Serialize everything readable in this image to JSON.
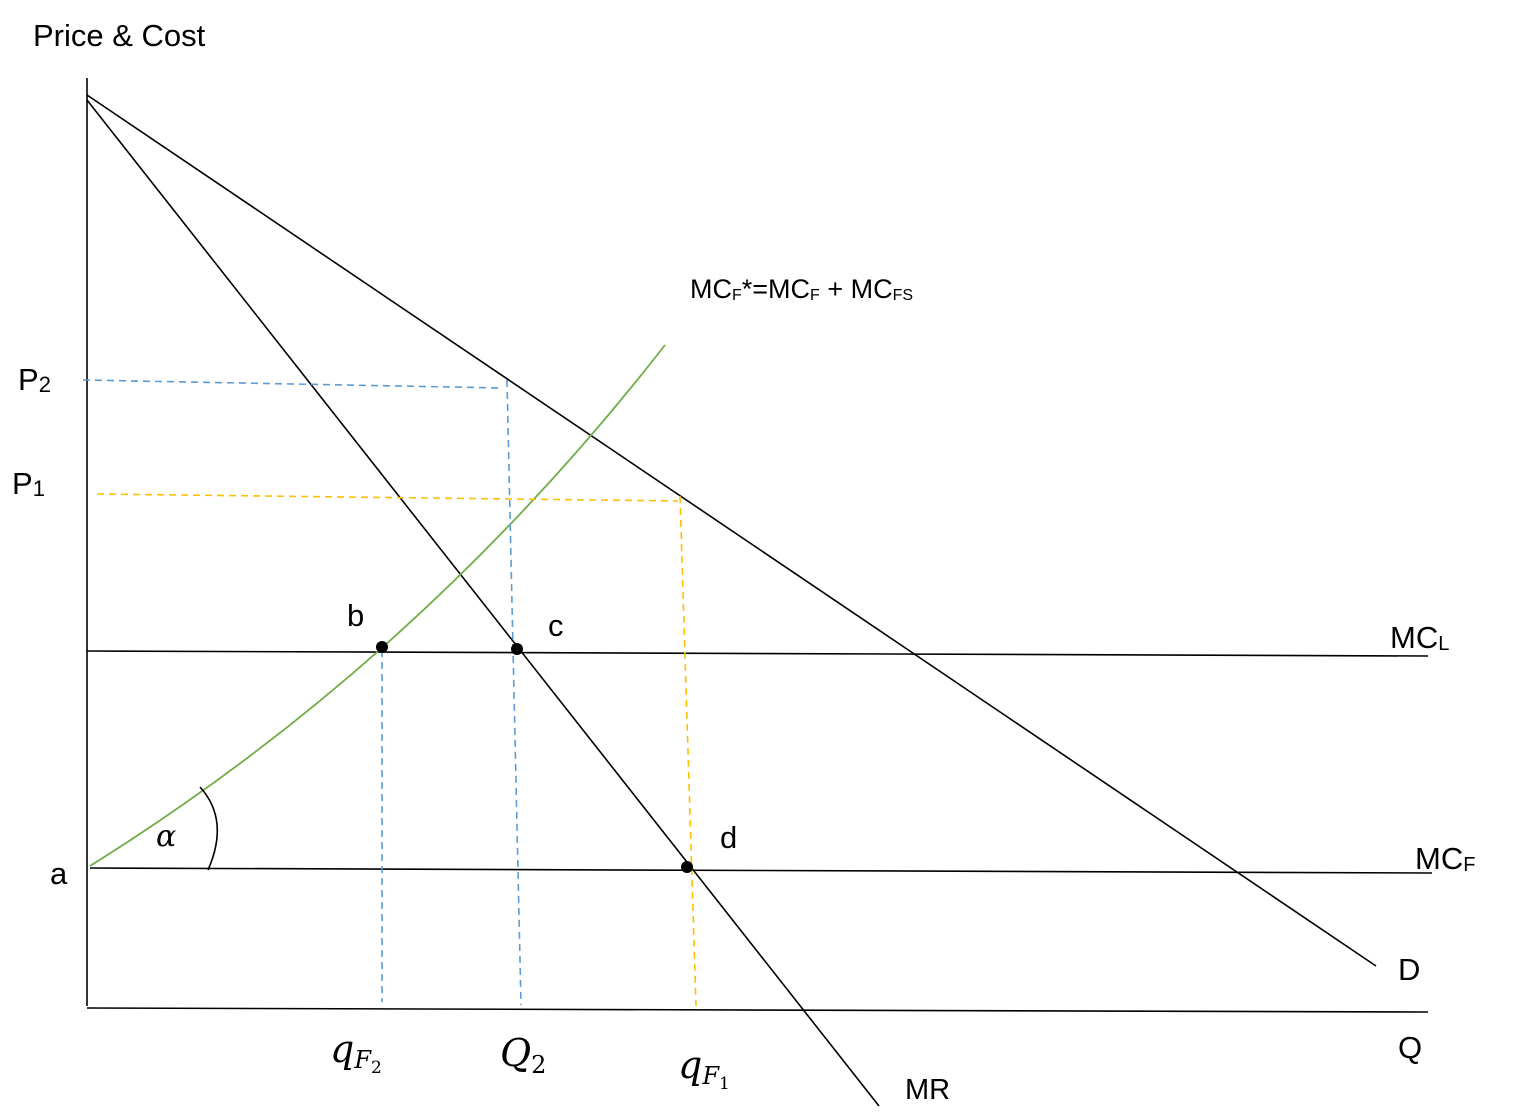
{
  "axes": {
    "y_label": "Price & Cost",
    "x_label": "Q"
  },
  "price_labels": {
    "p2": {
      "base": "P",
      "sub": "2"
    },
    "p1": {
      "base": "P",
      "sub": "1"
    },
    "a": "a"
  },
  "curves": {
    "mcf_star": {
      "base": "MC",
      "sub1": "F",
      "mid": "*=MC",
      "sub2": "F",
      "plus": " + MC",
      "sub3": "FS"
    },
    "mcl": {
      "base": "MC",
      "sub": "L"
    },
    "mcf": {
      "base": "MC",
      "sub": "F"
    },
    "demand": "D",
    "mr": "MR"
  },
  "points": {
    "b": "b",
    "c": "c",
    "d": "d"
  },
  "angle_label": "α",
  "quantity_labels": {
    "qf2": {
      "base": "q",
      "sub": "F",
      "subsub": "2"
    },
    "q2": {
      "base": "Q",
      "sub": "2"
    },
    "qf1": {
      "base": "q",
      "sub": "F",
      "subsub": "1"
    }
  },
  "colors": {
    "axis": "#000000",
    "mcf_star_curve": "#70ad47",
    "p2_guides": "#5b9bd5",
    "p1_guides": "#ffc000"
  }
}
